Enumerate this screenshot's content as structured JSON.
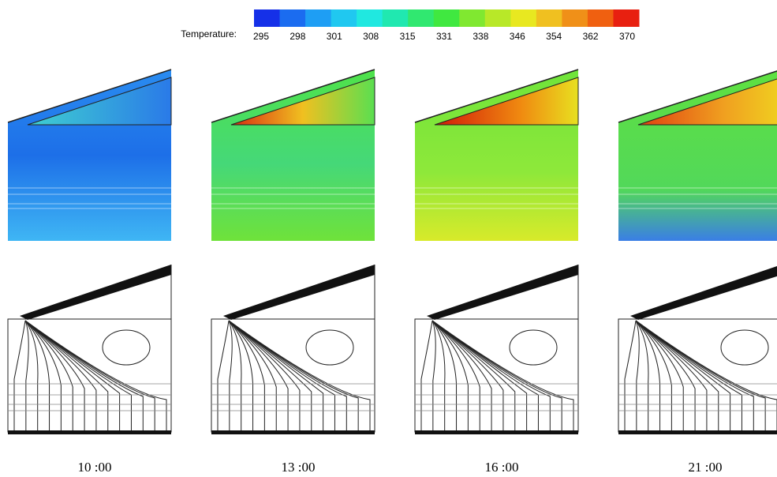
{
  "legend": {
    "label": "Temperature:",
    "ticks": [
      295,
      298,
      301,
      308,
      315,
      331,
      338,
      346,
      354,
      362,
      370
    ]
  },
  "panels": [
    {
      "time": "10 :00"
    },
    {
      "time": "13 :00"
    },
    {
      "time": "16 :00"
    },
    {
      "time": "21 :00"
    }
  ]
}
